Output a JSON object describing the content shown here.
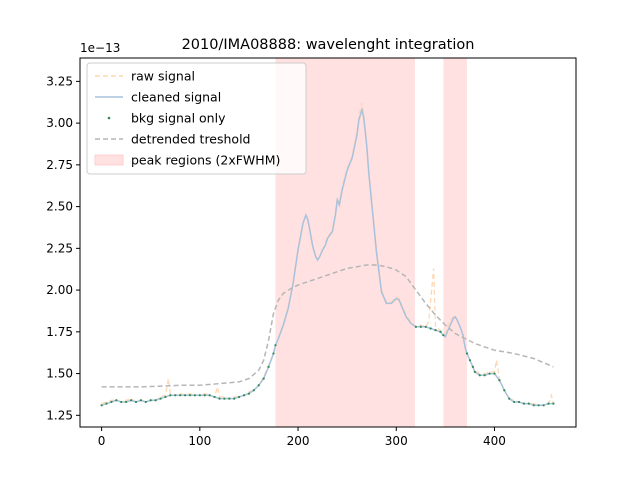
{
  "chart_data": {
    "type": "line",
    "title": "2010/IMA08888: wavelenght integration",
    "offset_label": "1e−13",
    "xlabel": "",
    "ylabel": "",
    "xlim": [
      -22,
      483
    ],
    "ylim": [
      1.18,
      3.39
    ],
    "x_ticks": [
      0,
      100,
      200,
      300,
      400
    ],
    "x_tick_labels": [
      "0",
      "100",
      "200",
      "300",
      "400"
    ],
    "y_ticks": [
      1.25,
      1.5,
      1.75,
      2.0,
      2.25,
      2.5,
      2.75,
      3.0,
      3.25
    ],
    "y_tick_labels": [
      "1.25",
      "1.50",
      "1.75",
      "2.00",
      "2.25",
      "2.50",
      "2.75",
      "3.00",
      "3.25"
    ],
    "grid": false,
    "legend_position": "top-left",
    "legend": [
      {
        "label": "raw signal",
        "style": "dashed",
        "color": "#ffd7b3"
      },
      {
        "label": "cleaned signal",
        "style": "solid",
        "color": "#a9c1dc"
      },
      {
        "label": "bkg signal only",
        "style": "dots",
        "color": "#2e8b57"
      },
      {
        "label": "detrended treshold",
        "style": "dashed",
        "color": "#b6b6b6"
      },
      {
        "label": "peak regions (2xFWHM)",
        "style": "patch",
        "color": "#ffe1e1"
      }
    ],
    "peak_regions": [
      [
        177,
        319
      ],
      [
        348,
        372
      ]
    ],
    "series": [
      {
        "name": "raw signal",
        "color": "#ffd7b3",
        "x": [
          0,
          5,
          10,
          15,
          20,
          25,
          30,
          35,
          40,
          45,
          50,
          55,
          60,
          65,
          68,
          70,
          75,
          80,
          85,
          90,
          95,
          100,
          105,
          110,
          115,
          118,
          120,
          125,
          130,
          135,
          140,
          145,
          150,
          155,
          160,
          165,
          170,
          175,
          177,
          180,
          185,
          190,
          195,
          200,
          205,
          208,
          210,
          212,
          215,
          218,
          220,
          222,
          225,
          228,
          230,
          235,
          238,
          240,
          242,
          245,
          250,
          255,
          260,
          262,
          265,
          267,
          270,
          272,
          275,
          280,
          285,
          290,
          295,
          300,
          303,
          305,
          310,
          315,
          320,
          325,
          330,
          333,
          335,
          338,
          340,
          345,
          348,
          350,
          352,
          355,
          358,
          360,
          362,
          365,
          368,
          370,
          372,
          375,
          378,
          380,
          385,
          390,
          395,
          400,
          402,
          405,
          410,
          415,
          420,
          425,
          430,
          435,
          440,
          445,
          450,
          455,
          458,
          460
        ],
        "values": [
          1.32,
          1.33,
          1.34,
          1.34,
          1.33,
          1.34,
          1.35,
          1.33,
          1.34,
          1.33,
          1.34,
          1.34,
          1.36,
          1.37,
          1.47,
          1.37,
          1.37,
          1.38,
          1.37,
          1.38,
          1.37,
          1.37,
          1.38,
          1.37,
          1.36,
          1.42,
          1.36,
          1.36,
          1.35,
          1.36,
          1.36,
          1.37,
          1.39,
          1.4,
          1.43,
          1.48,
          1.55,
          1.62,
          1.67,
          1.71,
          1.8,
          1.9,
          2.05,
          2.25,
          2.4,
          2.45,
          2.42,
          2.36,
          2.26,
          2.2,
          2.18,
          2.2,
          2.24,
          2.28,
          2.32,
          2.36,
          2.46,
          2.55,
          2.52,
          2.62,
          2.73,
          2.8,
          2.95,
          3.05,
          3.12,
          3.05,
          2.88,
          2.72,
          2.55,
          2.25,
          2.0,
          1.93,
          1.93,
          1.96,
          1.95,
          1.92,
          1.85,
          1.81,
          1.78,
          1.79,
          1.78,
          1.81,
          1.93,
          2.13,
          1.78,
          1.76,
          1.74,
          1.74,
          1.78,
          1.82,
          1.84,
          1.83,
          1.82,
          1.78,
          1.73,
          1.66,
          1.62,
          1.58,
          1.54,
          1.52,
          1.5,
          1.5,
          1.51,
          1.51,
          1.58,
          1.47,
          1.4,
          1.35,
          1.34,
          1.33,
          1.32,
          1.32,
          1.32,
          1.31,
          1.31,
          1.32,
          1.37,
          1.32
        ]
      },
      {
        "name": "cleaned signal",
        "color": "#a9c1dc",
        "x": [
          0,
          5,
          10,
          15,
          20,
          25,
          30,
          35,
          40,
          45,
          50,
          55,
          60,
          65,
          70,
          75,
          80,
          85,
          90,
          95,
          100,
          105,
          110,
          115,
          120,
          125,
          130,
          135,
          140,
          145,
          150,
          155,
          160,
          165,
          170,
          175,
          177,
          180,
          185,
          190,
          195,
          200,
          205,
          208,
          210,
          212,
          215,
          218,
          220,
          222,
          225,
          228,
          230,
          235,
          238,
          240,
          242,
          245,
          250,
          255,
          260,
          262,
          265,
          267,
          270,
          272,
          275,
          280,
          285,
          290,
          295,
          300,
          303,
          305,
          310,
          315,
          320,
          325,
          330,
          335,
          340,
          345,
          348,
          350,
          352,
          355,
          358,
          360,
          362,
          365,
          368,
          370,
          372,
          375,
          378,
          380,
          385,
          390,
          395,
          400,
          405,
          410,
          415,
          420,
          425,
          430,
          435,
          440,
          445,
          450,
          455,
          460
        ],
        "values": [
          1.31,
          1.32,
          1.33,
          1.34,
          1.33,
          1.33,
          1.34,
          1.33,
          1.34,
          1.33,
          1.34,
          1.34,
          1.35,
          1.36,
          1.37,
          1.37,
          1.37,
          1.37,
          1.37,
          1.37,
          1.37,
          1.37,
          1.37,
          1.36,
          1.35,
          1.35,
          1.35,
          1.35,
          1.36,
          1.37,
          1.38,
          1.4,
          1.43,
          1.47,
          1.54,
          1.62,
          1.67,
          1.71,
          1.79,
          1.89,
          2.04,
          2.24,
          2.4,
          2.45,
          2.42,
          2.36,
          2.26,
          2.2,
          2.18,
          2.2,
          2.24,
          2.27,
          2.31,
          2.35,
          2.45,
          2.54,
          2.51,
          2.6,
          2.72,
          2.79,
          2.93,
          3.02,
          3.08,
          3.03,
          2.86,
          2.7,
          2.52,
          2.22,
          1.99,
          1.92,
          1.92,
          1.95,
          1.94,
          1.91,
          1.84,
          1.8,
          1.78,
          1.78,
          1.78,
          1.77,
          1.76,
          1.75,
          1.73,
          1.72,
          1.75,
          1.79,
          1.83,
          1.84,
          1.82,
          1.78,
          1.73,
          1.66,
          1.62,
          1.58,
          1.54,
          1.51,
          1.49,
          1.49,
          1.5,
          1.5,
          1.46,
          1.4,
          1.35,
          1.33,
          1.33,
          1.32,
          1.32,
          1.31,
          1.31,
          1.31,
          1.32,
          1.32
        ]
      },
      {
        "name": "bkg signal only",
        "color": "#2e8b57",
        "x": [
          0,
          5,
          10,
          15,
          20,
          25,
          30,
          35,
          40,
          45,
          50,
          55,
          60,
          65,
          70,
          75,
          80,
          85,
          90,
          95,
          100,
          105,
          110,
          115,
          120,
          125,
          130,
          135,
          140,
          145,
          150,
          155,
          160,
          165,
          170,
          175,
          177,
          320,
          325,
          330,
          335,
          340,
          345,
          348,
          372,
          375,
          378,
          380,
          385,
          390,
          395,
          400,
          405,
          410,
          415,
          420,
          425,
          430,
          435,
          440,
          445,
          450,
          455,
          460
        ],
        "values": [
          1.31,
          1.32,
          1.33,
          1.34,
          1.33,
          1.33,
          1.34,
          1.33,
          1.34,
          1.33,
          1.34,
          1.34,
          1.35,
          1.36,
          1.37,
          1.37,
          1.37,
          1.37,
          1.37,
          1.37,
          1.37,
          1.37,
          1.37,
          1.36,
          1.35,
          1.35,
          1.35,
          1.35,
          1.36,
          1.37,
          1.38,
          1.4,
          1.43,
          1.47,
          1.54,
          1.62,
          1.67,
          1.78,
          1.78,
          1.78,
          1.77,
          1.76,
          1.75,
          1.73,
          1.62,
          1.58,
          1.54,
          1.51,
          1.49,
          1.49,
          1.5,
          1.5,
          1.46,
          1.4,
          1.35,
          1.33,
          1.33,
          1.32,
          1.32,
          1.31,
          1.31,
          1.31,
          1.32,
          1.32
        ]
      },
      {
        "name": "detrended treshold",
        "color": "#b6b6b6",
        "x": [
          0,
          20,
          40,
          60,
          80,
          100,
          120,
          140,
          150,
          160,
          165,
          170,
          175,
          180,
          185,
          190,
          200,
          210,
          220,
          230,
          240,
          250,
          260,
          270,
          280,
          290,
          300,
          310,
          320,
          330,
          340,
          350,
          360,
          370,
          380,
          390,
          400,
          420,
          440,
          460
        ],
        "values": [
          1.42,
          1.42,
          1.42,
          1.425,
          1.43,
          1.43,
          1.44,
          1.45,
          1.47,
          1.52,
          1.58,
          1.7,
          1.86,
          1.94,
          1.98,
          2.0,
          2.03,
          2.05,
          2.07,
          2.09,
          2.11,
          2.13,
          2.14,
          2.15,
          2.15,
          2.14,
          2.12,
          2.08,
          2.0,
          1.92,
          1.85,
          1.79,
          1.74,
          1.71,
          1.68,
          1.66,
          1.64,
          1.62,
          1.59,
          1.54
        ]
      }
    ]
  }
}
